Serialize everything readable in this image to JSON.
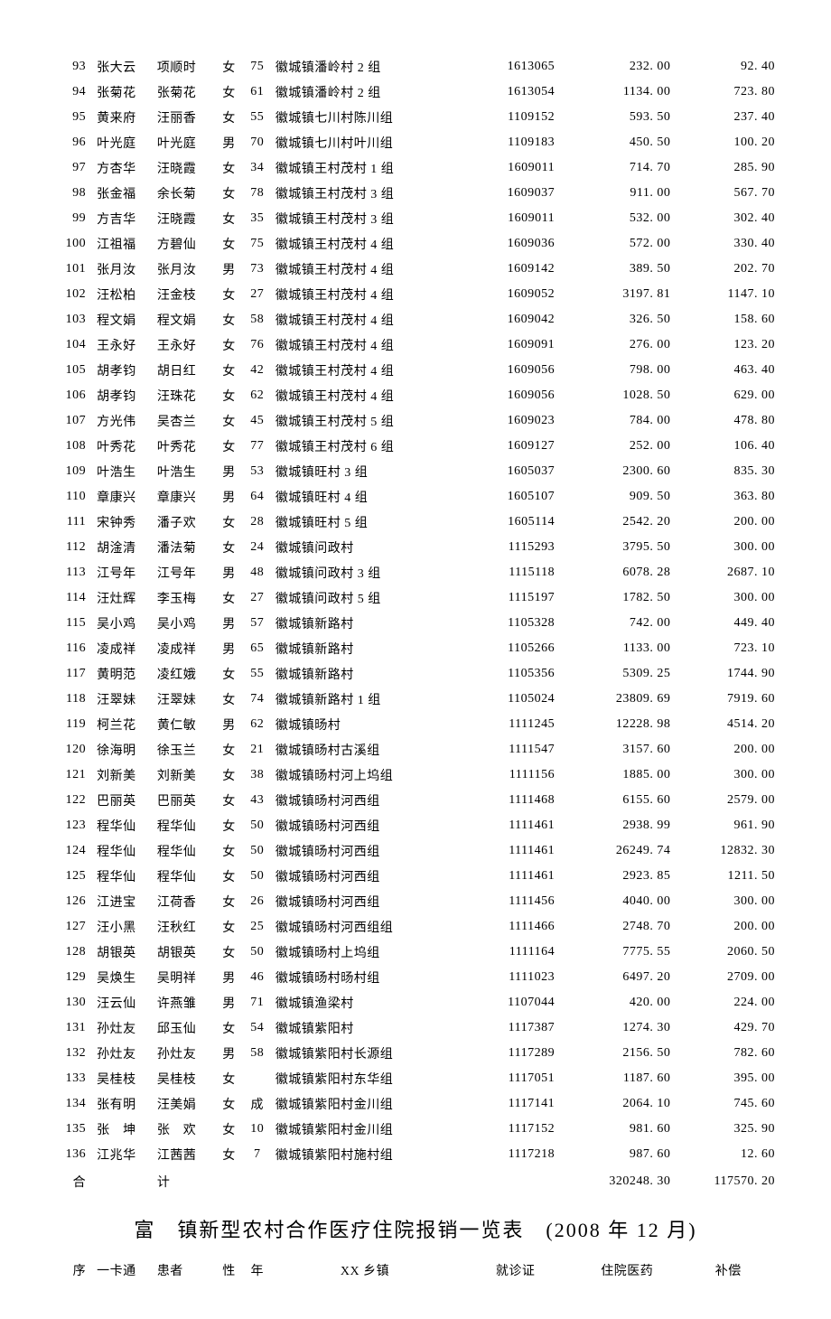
{
  "rows": [
    {
      "idx": "93",
      "name1": "张大云",
      "name2": "项顺时",
      "sex": "女",
      "age": "75",
      "addr": "徽城镇潘岭村 2 组",
      "cert": "1613065",
      "amt1": "232. 00",
      "amt2": "92. 40"
    },
    {
      "idx": "94",
      "name1": "张菊花",
      "name2": "张菊花",
      "sex": "女",
      "age": "61",
      "addr": "徽城镇潘岭村 2 组",
      "cert": "1613054",
      "amt1": "1134. 00",
      "amt2": "723. 80"
    },
    {
      "idx": "95",
      "name1": "黄来府",
      "name2": "汪丽香",
      "sex": "女",
      "age": "55",
      "addr": "徽城镇七川村陈川组",
      "cert": "1109152",
      "amt1": "593. 50",
      "amt2": "237. 40"
    },
    {
      "idx": "96",
      "name1": "叶光庭",
      "name2": "叶光庭",
      "sex": "男",
      "age": "70",
      "addr": "徽城镇七川村叶川组",
      "cert": "1109183",
      "amt1": "450. 50",
      "amt2": "100. 20"
    },
    {
      "idx": "97",
      "name1": "方杏华",
      "name2": "汪晓霞",
      "sex": "女",
      "age": "34",
      "addr": "徽城镇王村茂村 1 组",
      "cert": "1609011",
      "amt1": "714. 70",
      "amt2": "285. 90"
    },
    {
      "idx": "98",
      "name1": "张金福",
      "name2": "余长菊",
      "sex": "女",
      "age": "78",
      "addr": "徽城镇王村茂村 3 组",
      "cert": "1609037",
      "amt1": "911. 00",
      "amt2": "567. 70"
    },
    {
      "idx": "99",
      "name1": "方吉华",
      "name2": "汪晓霞",
      "sex": "女",
      "age": "35",
      "addr": "徽城镇王村茂村 3 组",
      "cert": "1609011",
      "amt1": "532. 00",
      "amt2": "302. 40"
    },
    {
      "idx": "100",
      "name1": "江祖福",
      "name2": "方碧仙",
      "sex": "女",
      "age": "75",
      "addr": "徽城镇王村茂村 4 组",
      "cert": "1609036",
      "amt1": "572. 00",
      "amt2": "330. 40"
    },
    {
      "idx": "101",
      "name1": "张月汝",
      "name2": "张月汝",
      "sex": "男",
      "age": "73",
      "addr": "徽城镇王村茂村 4 组",
      "cert": "1609142",
      "amt1": "389. 50",
      "amt2": "202. 70"
    },
    {
      "idx": "102",
      "name1": "汪松柏",
      "name2": "汪金枝",
      "sex": "女",
      "age": "27",
      "addr": "徽城镇王村茂村 4 组",
      "cert": "1609052",
      "amt1": "3197. 81",
      "amt2": "1147. 10"
    },
    {
      "idx": "103",
      "name1": "程文娟",
      "name2": "程文娟",
      "sex": "女",
      "age": "58",
      "addr": "徽城镇王村茂村 4 组",
      "cert": "1609042",
      "amt1": "326. 50",
      "amt2": "158. 60"
    },
    {
      "idx": "104",
      "name1": "王永好",
      "name2": "王永好",
      "sex": "女",
      "age": "76",
      "addr": "徽城镇王村茂村 4 组",
      "cert": "1609091",
      "amt1": "276. 00",
      "amt2": "123. 20"
    },
    {
      "idx": "105",
      "name1": "胡孝钧",
      "name2": "胡日红",
      "sex": "女",
      "age": "42",
      "addr": "徽城镇王村茂村 4 组",
      "cert": "1609056",
      "amt1": "798. 00",
      "amt2": "463. 40"
    },
    {
      "idx": "106",
      "name1": "胡孝钧",
      "name2": "汪珠花",
      "sex": "女",
      "age": "62",
      "addr": "徽城镇王村茂村 4 组",
      "cert": "1609056",
      "amt1": "1028. 50",
      "amt2": "629. 00"
    },
    {
      "idx": "107",
      "name1": "方光伟",
      "name2": "吴杏兰",
      "sex": "女",
      "age": "45",
      "addr": "徽城镇王村茂村 5 组",
      "cert": "1609023",
      "amt1": "784. 00",
      "amt2": "478. 80"
    },
    {
      "idx": "108",
      "name1": "叶秀花",
      "name2": "叶秀花",
      "sex": "女",
      "age": "77",
      "addr": "徽城镇王村茂村 6 组",
      "cert": "1609127",
      "amt1": "252. 00",
      "amt2": "106. 40"
    },
    {
      "idx": "109",
      "name1": "叶浩生",
      "name2": "叶浩生",
      "sex": "男",
      "age": "53",
      "addr": "徽城镇旺村 3 组",
      "cert": "1605037",
      "amt1": "2300. 60",
      "amt2": "835. 30"
    },
    {
      "idx": "110",
      "name1": "章康兴",
      "name2": "章康兴",
      "sex": "男",
      "age": "64",
      "addr": "徽城镇旺村 4 组",
      "cert": "1605107",
      "amt1": "909. 50",
      "amt2": "363. 80"
    },
    {
      "idx": "111",
      "name1": "宋钟秀",
      "name2": "潘子欢",
      "sex": "女",
      "age": "28",
      "addr": "徽城镇旺村 5 组",
      "cert": "1605114",
      "amt1": "2542. 20",
      "amt2": "200. 00"
    },
    {
      "idx": "112",
      "name1": "胡淦清",
      "name2": "潘法菊",
      "sex": "女",
      "age": "24",
      "addr": "徽城镇问政村",
      "cert": "1115293",
      "amt1": "3795. 50",
      "amt2": "300. 00"
    },
    {
      "idx": "113",
      "name1": "江号年",
      "name2": "江号年",
      "sex": "男",
      "age": "48",
      "addr": "徽城镇问政村 3 组",
      "cert": "1115118",
      "amt1": "6078. 28",
      "amt2": "2687. 10"
    },
    {
      "idx": "114",
      "name1": "汪灶辉",
      "name2": "李玉梅",
      "sex": "女",
      "age": "27",
      "addr": "徽城镇问政村 5 组",
      "cert": "1115197",
      "amt1": "1782. 50",
      "amt2": "300. 00"
    },
    {
      "idx": "115",
      "name1": "吴小鸡",
      "name2": "吴小鸡",
      "sex": "男",
      "age": "57",
      "addr": "徽城镇新路村",
      "cert": "1105328",
      "amt1": "742. 00",
      "amt2": "449. 40"
    },
    {
      "idx": "116",
      "name1": "凌成祥",
      "name2": "凌成祥",
      "sex": "男",
      "age": "65",
      "addr": "徽城镇新路村",
      "cert": "1105266",
      "amt1": "1133. 00",
      "amt2": "723. 10"
    },
    {
      "idx": "117",
      "name1": "黄明范",
      "name2": "凌红娥",
      "sex": "女",
      "age": "55",
      "addr": "徽城镇新路村",
      "cert": "1105356",
      "amt1": "5309. 25",
      "amt2": "1744. 90"
    },
    {
      "idx": "118",
      "name1": "汪翠妹",
      "name2": "汪翠妹",
      "sex": "女",
      "age": "74",
      "addr": "徽城镇新路村 1 组",
      "cert": "1105024",
      "amt1": "23809. 69",
      "amt2": "7919. 60"
    },
    {
      "idx": "119",
      "name1": "柯兰花",
      "name2": "黄仁敏",
      "sex": "男",
      "age": "62",
      "addr": "徽城镇旸村",
      "cert": "1111245",
      "amt1": "12228. 98",
      "amt2": "4514. 20"
    },
    {
      "idx": "120",
      "name1": "徐海明",
      "name2": "徐玉兰",
      "sex": "女",
      "age": "21",
      "addr": "徽城镇旸村古溪组",
      "cert": "1111547",
      "amt1": "3157. 60",
      "amt2": "200. 00"
    },
    {
      "idx": "121",
      "name1": "刘新美",
      "name2": "刘新美",
      "sex": "女",
      "age": "38",
      "addr": "徽城镇旸村河上坞组",
      "cert": "1111156",
      "amt1": "1885. 00",
      "amt2": "300. 00"
    },
    {
      "idx": "122",
      "name1": "巴丽英",
      "name2": "巴丽英",
      "sex": "女",
      "age": "43",
      "addr": "徽城镇旸村河西组",
      "cert": "1111468",
      "amt1": "6155. 60",
      "amt2": "2579. 00"
    },
    {
      "idx": "123",
      "name1": "程华仙",
      "name2": "程华仙",
      "sex": "女",
      "age": "50",
      "addr": "徽城镇旸村河西组",
      "cert": "1111461",
      "amt1": "2938. 99",
      "amt2": "961. 90"
    },
    {
      "idx": "124",
      "name1": "程华仙",
      "name2": "程华仙",
      "sex": "女",
      "age": "50",
      "addr": "徽城镇旸村河西组",
      "cert": "1111461",
      "amt1": "26249. 74",
      "amt2": "12832. 30"
    },
    {
      "idx": "125",
      "name1": "程华仙",
      "name2": "程华仙",
      "sex": "女",
      "age": "50",
      "addr": "徽城镇旸村河西组",
      "cert": "1111461",
      "amt1": "2923. 85",
      "amt2": "1211. 50"
    },
    {
      "idx": "126",
      "name1": "江进宝",
      "name2": "江荷香",
      "sex": "女",
      "age": "26",
      "addr": "徽城镇旸村河西组",
      "cert": "1111456",
      "amt1": "4040. 00",
      "amt2": "300. 00"
    },
    {
      "idx": "127",
      "name1": "汪小黑",
      "name2": "汪秋红",
      "sex": "女",
      "age": "25",
      "addr": "徽城镇旸村河西组组",
      "cert": "1111466",
      "amt1": "2748. 70",
      "amt2": "200. 00"
    },
    {
      "idx": "128",
      "name1": "胡银英",
      "name2": "胡银英",
      "sex": "女",
      "age": "50",
      "addr": "徽城镇旸村上坞组",
      "cert": "1111164",
      "amt1": "7775. 55",
      "amt2": "2060. 50"
    },
    {
      "idx": "129",
      "name1": "吴焕生",
      "name2": "吴明祥",
      "sex": "男",
      "age": "46",
      "addr": "徽城镇旸村旸村组",
      "cert": "1111023",
      "amt1": "6497. 20",
      "amt2": "2709. 00"
    },
    {
      "idx": "130",
      "name1": "汪云仙",
      "name2": "许燕雏",
      "sex": "男",
      "age": "71",
      "addr": "徽城镇渔梁村",
      "cert": "1107044",
      "amt1": "420. 00",
      "amt2": "224. 00"
    },
    {
      "idx": "131",
      "name1": "孙灶友",
      "name2": "邱玉仙",
      "sex": "女",
      "age": "54",
      "addr": "徽城镇紫阳村",
      "cert": "1117387",
      "amt1": "1274. 30",
      "amt2": "429. 70"
    },
    {
      "idx": "132",
      "name1": "孙灶友",
      "name2": "孙灶友",
      "sex": "男",
      "age": "58",
      "addr": "徽城镇紫阳村长源组",
      "cert": "1117289",
      "amt1": "2156. 50",
      "amt2": "782. 60"
    },
    {
      "idx": "133",
      "name1": "吴桂枝",
      "name2": "吴桂枝",
      "sex": "女",
      "age": "",
      "addr": "徽城镇紫阳村东华组",
      "cert": "1117051",
      "amt1": "1187. 60",
      "amt2": "395. 00"
    },
    {
      "idx": "134",
      "name1": "张有明",
      "name2": "汪美娟",
      "sex": "女",
      "age": "成",
      "addr": "徽城镇紫阳村金川组",
      "cert": "1117141",
      "amt1": "2064. 10",
      "amt2": "745. 60"
    },
    {
      "idx": "135",
      "name1": "张　坤",
      "name2": "张　欢",
      "sex": "女",
      "age": "10",
      "addr": "徽城镇紫阳村金川组",
      "cert": "1117152",
      "amt1": "981. 60",
      "amt2": "325. 90"
    },
    {
      "idx": "136",
      "name1": "江兆华",
      "name2": "江茜茜",
      "sex": "女",
      "age": "7",
      "addr": "徽城镇紫阳村施村组",
      "cert": "1117218",
      "amt1": "987. 60",
      "amt2": "12. 60"
    }
  ],
  "total": {
    "label1": "合",
    "label2": "计",
    "amt1": "320248. 30",
    "amt2": "117570. 20"
  },
  "title": "富　镇新型农村合作医疗住院报销一览表　(2008 年 12 月)",
  "header": {
    "h1": "序",
    "h2": "一卡通",
    "h3": "患者",
    "h4": "性",
    "h5": "年",
    "h6": "XX 乡镇",
    "h7": "就诊证",
    "h8": "住院医药",
    "h9": "补偿"
  }
}
